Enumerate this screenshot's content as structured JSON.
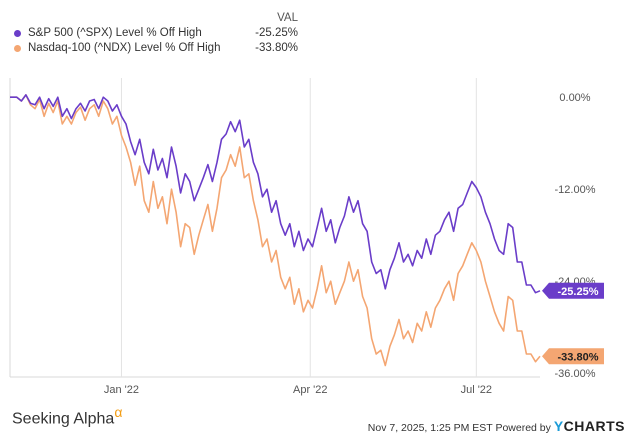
{
  "legend_header": "VAL",
  "footer": {
    "brand_left": "Seeking Alpha",
    "brand_left_symbol": "α",
    "timestamp": "Nov 7, 2025, 1:25 PM EST",
    "powered_by": "Powered by",
    "brand_right_y": "Y",
    "brand_right_rest": "CHARTS"
  },
  "chart_data": {
    "type": "line",
    "x_ticks": [
      "Jan '22",
      "Apr '22",
      "Jul '22"
    ],
    "y_ticks": [
      "0.00%",
      "-12.00%",
      "-24.00%",
      "-36.00%"
    ],
    "y_tick_values": [
      0,
      -12,
      -24,
      -36
    ],
    "ylim": [
      -36.5,
      2.5
    ],
    "grid": "vertical",
    "legend_placement": "top-left",
    "series": [
      {
        "name": "S&P 500 (^SPX) Level % Off High",
        "value_label": "-25.25%",
        "last": -25.25,
        "color": "#6a3dc9",
        "points": [
          [
            0,
            0
          ],
          [
            3,
            0
          ],
          [
            5,
            -0.5
          ],
          [
            7,
            0.3
          ],
          [
            9,
            -0.8
          ],
          [
            11,
            -1.0
          ],
          [
            13,
            0
          ],
          [
            15,
            -1.5
          ],
          [
            17,
            -0.2
          ],
          [
            19,
            -1.2
          ],
          [
            21,
            0
          ],
          [
            23,
            -2.5
          ],
          [
            25,
            -1.5
          ],
          [
            27,
            -2.8
          ],
          [
            29,
            -1.5
          ],
          [
            31,
            -0.8
          ],
          [
            33,
            -1.8
          ],
          [
            35,
            -0.5
          ],
          [
            37,
            -0.3
          ],
          [
            39,
            -1.5
          ],
          [
            41,
            0
          ],
          [
            43,
            -0.5
          ],
          [
            45,
            -1.8
          ],
          [
            47,
            -1.0
          ],
          [
            49,
            -2.5
          ],
          [
            51,
            -3.5
          ],
          [
            53,
            -5.8
          ],
          [
            55,
            -7.5
          ],
          [
            57,
            -5.5
          ],
          [
            59,
            -8.5
          ],
          [
            61,
            -10.0
          ],
          [
            63,
            -6.8
          ],
          [
            65,
            -9.5
          ],
          [
            67,
            -8.0
          ],
          [
            69,
            -10.5
          ],
          [
            71,
            -6.5
          ],
          [
            73,
            -9.0
          ],
          [
            75,
            -12.5
          ],
          [
            77,
            -10.0
          ],
          [
            79,
            -11.0
          ],
          [
            81,
            -13.5
          ],
          [
            83,
            -12.0
          ],
          [
            85,
            -10.5
          ],
          [
            87,
            -8.8
          ],
          [
            89,
            -11.0
          ],
          [
            91,
            -8.5
          ],
          [
            93,
            -5.5
          ],
          [
            95,
            -4.8
          ],
          [
            97,
            -3.2
          ],
          [
            99,
            -4.5
          ],
          [
            101,
            -3.0
          ],
          [
            103,
            -6.5
          ],
          [
            105,
            -5.5
          ],
          [
            107,
            -8.5
          ],
          [
            109,
            -10.0
          ],
          [
            111,
            -13.0
          ],
          [
            113,
            -12.0
          ],
          [
            115,
            -15.0
          ],
          [
            117,
            -13.5
          ],
          [
            119,
            -16.5
          ],
          [
            121,
            -18.0
          ],
          [
            123,
            -16.5
          ],
          [
            125,
            -19.5
          ],
          [
            127,
            -17.5
          ],
          [
            129,
            -20.0
          ],
          [
            131,
            -18.5
          ],
          [
            133,
            -19.5
          ],
          [
            135,
            -17.0
          ],
          [
            137,
            -14.5
          ],
          [
            139,
            -17.5
          ],
          [
            141,
            -16.0
          ],
          [
            143,
            -19.0
          ],
          [
            145,
            -17.0
          ],
          [
            147,
            -15.5
          ],
          [
            149,
            -13.0
          ],
          [
            151,
            -15.0
          ],
          [
            153,
            -13.5
          ],
          [
            155,
            -16.5
          ],
          [
            157,
            -17.5
          ],
          [
            159,
            -21.5
          ],
          [
            161,
            -23.0
          ],
          [
            163,
            -22.5
          ],
          [
            165,
            -25.0
          ],
          [
            167,
            -22.5
          ],
          [
            169,
            -21.0
          ],
          [
            171,
            -19.0
          ],
          [
            173,
            -21.5
          ],
          [
            175,
            -20.5
          ],
          [
            177,
            -22.0
          ],
          [
            179,
            -20.0
          ],
          [
            181,
            -21.0
          ],
          [
            183,
            -18.5
          ],
          [
            185,
            -20.5
          ],
          [
            187,
            -18.0
          ],
          [
            189,
            -17.5
          ],
          [
            191,
            -16.0
          ],
          [
            193,
            -15.0
          ],
          [
            195,
            -17.5
          ],
          [
            197,
            -14.5
          ],
          [
            199,
            -14.0
          ],
          [
            201,
            -12.5
          ],
          [
            203,
            -11.0
          ],
          [
            205,
            -11.8
          ],
          [
            207,
            -13.0
          ],
          [
            209,
            -15.0
          ],
          [
            211,
            -16.5
          ],
          [
            213,
            -18.5
          ],
          [
            215,
            -20.0
          ],
          [
            217,
            -20.5
          ],
          [
            219,
            -16.5
          ],
          [
            221,
            -17.0
          ],
          [
            223,
            -21.5
          ],
          [
            225,
            -21.5
          ],
          [
            227,
            -24.5
          ],
          [
            229,
            -24.5
          ],
          [
            231,
            -25.5
          ],
          [
            233,
            -25.25
          ]
        ]
      },
      {
        "name": "Nasdaq-100 (^NDX) Level % Off High",
        "value_label": "-33.80%",
        "last": -33.8,
        "color": "#f4a672",
        "points": [
          [
            0,
            0
          ],
          [
            3,
            0
          ],
          [
            5,
            -0.5
          ],
          [
            7,
            0.3
          ],
          [
            9,
            -1.0
          ],
          [
            11,
            -1.5
          ],
          [
            13,
            -0.3
          ],
          [
            15,
            -2.5
          ],
          [
            17,
            -0.8
          ],
          [
            19,
            -2.0
          ],
          [
            21,
            -0.5
          ],
          [
            23,
            -3.5
          ],
          [
            25,
            -2.5
          ],
          [
            27,
            -3.5
          ],
          [
            29,
            -2.0
          ],
          [
            31,
            -1.3
          ],
          [
            33,
            -3.0
          ],
          [
            35,
            -1.5
          ],
          [
            37,
            -1.0
          ],
          [
            39,
            -2.5
          ],
          [
            41,
            -0.5
          ],
          [
            43,
            -1.5
          ],
          [
            45,
            -3.5
          ],
          [
            47,
            -2.5
          ],
          [
            49,
            -5.0
          ],
          [
            51,
            -6.5
          ],
          [
            53,
            -8.5
          ],
          [
            55,
            -11.5
          ],
          [
            57,
            -9.0
          ],
          [
            59,
            -13.5
          ],
          [
            61,
            -15.0
          ],
          [
            63,
            -11.0
          ],
          [
            65,
            -14.5
          ],
          [
            67,
            -13.0
          ],
          [
            69,
            -16.5
          ],
          [
            71,
            -12.0
          ],
          [
            73,
            -15.0
          ],
          [
            75,
            -19.5
          ],
          [
            77,
            -16.5
          ],
          [
            79,
            -17.0
          ],
          [
            81,
            -20.5
          ],
          [
            83,
            -18.0
          ],
          [
            85,
            -16.0
          ],
          [
            87,
            -14.0
          ],
          [
            89,
            -17.5
          ],
          [
            91,
            -14.5
          ],
          [
            93,
            -10.5
          ],
          [
            95,
            -9.5
          ],
          [
            97,
            -7.5
          ],
          [
            99,
            -9.0
          ],
          [
            101,
            -6.5
          ],
          [
            103,
            -10.5
          ],
          [
            105,
            -10.0
          ],
          [
            107,
            -13.5
          ],
          [
            109,
            -16.0
          ],
          [
            111,
            -19.5
          ],
          [
            113,
            -18.5
          ],
          [
            115,
            -21.5
          ],
          [
            117,
            -20.0
          ],
          [
            119,
            -23.5
          ],
          [
            121,
            -25.0
          ],
          [
            123,
            -23.5
          ],
          [
            125,
            -27.0
          ],
          [
            127,
            -25.0
          ],
          [
            129,
            -28.0
          ],
          [
            131,
            -26.5
          ],
          [
            133,
            -27.5
          ],
          [
            135,
            -25.0
          ],
          [
            137,
            -22.0
          ],
          [
            139,
            -25.5
          ],
          [
            141,
            -24.0
          ],
          [
            143,
            -27.0
          ],
          [
            145,
            -25.5
          ],
          [
            147,
            -24.0
          ],
          [
            149,
            -21.5
          ],
          [
            151,
            -24.0
          ],
          [
            153,
            -22.5
          ],
          [
            155,
            -26.0
          ],
          [
            157,
            -27.5
          ],
          [
            159,
            -31.5
          ],
          [
            161,
            -33.5
          ],
          [
            163,
            -33.0
          ],
          [
            165,
            -35.0
          ],
          [
            167,
            -32.5
          ],
          [
            169,
            -31.0
          ],
          [
            171,
            -29.0
          ],
          [
            173,
            -31.5
          ],
          [
            175,
            -30.5
          ],
          [
            177,
            -32.0
          ],
          [
            179,
            -29.5
          ],
          [
            181,
            -30.5
          ],
          [
            183,
            -28.0
          ],
          [
            185,
            -30.0
          ],
          [
            187,
            -27.5
          ],
          [
            189,
            -26.5
          ],
          [
            191,
            -25.0
          ],
          [
            193,
            -24.0
          ],
          [
            195,
            -26.5
          ],
          [
            197,
            -23.0
          ],
          [
            199,
            -22.0
          ],
          [
            201,
            -20.5
          ],
          [
            203,
            -19.0
          ],
          [
            205,
            -20.0
          ],
          [
            207,
            -21.5
          ],
          [
            209,
            -24.0
          ],
          [
            211,
            -26.0
          ],
          [
            213,
            -28.0
          ],
          [
            215,
            -29.5
          ],
          [
            217,
            -30.5
          ],
          [
            219,
            -26.0
          ],
          [
            221,
            -26.5
          ],
          [
            223,
            -30.5
          ],
          [
            225,
            -30.5
          ],
          [
            227,
            -33.5
          ],
          [
            229,
            -33.5
          ],
          [
            231,
            -34.5
          ],
          [
            233,
            -33.8
          ]
        ]
      }
    ]
  }
}
